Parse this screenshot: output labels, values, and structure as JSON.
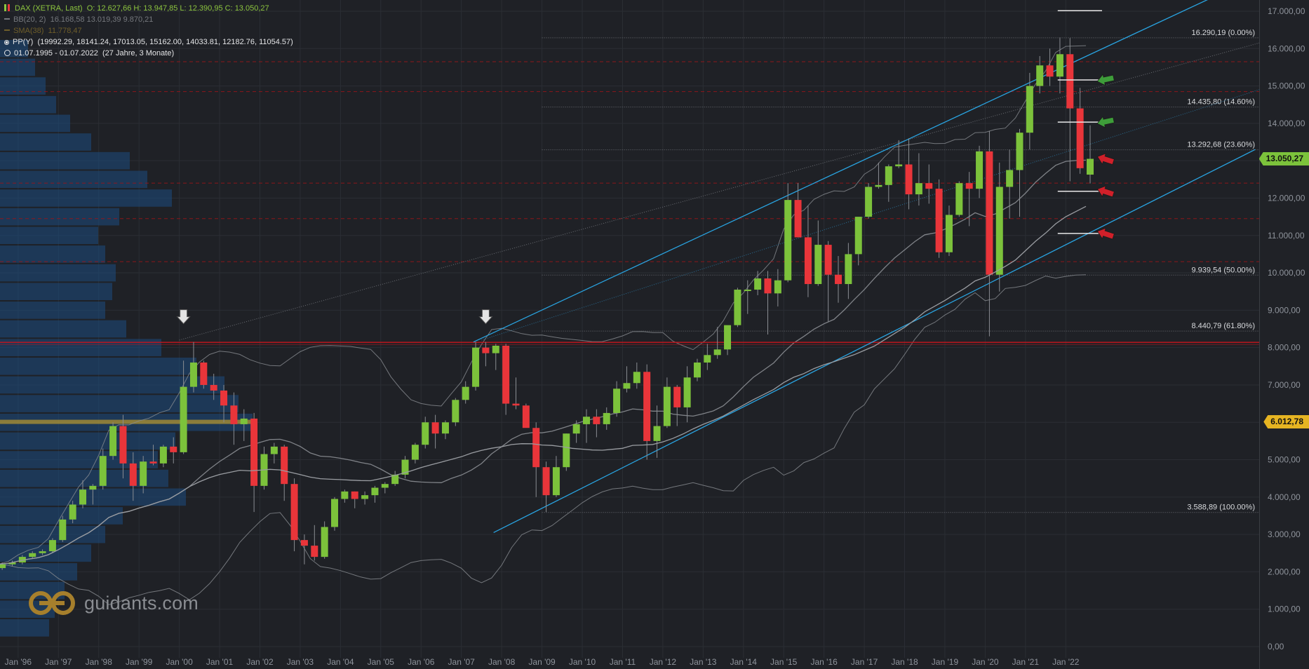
{
  "legend": {
    "title": "DAX (XETRA, Last)",
    "ohlc": "O: 12.627,66  H: 13.947,85  L: 12.390,95  C: 13.050,27",
    "bb_label": "BB(20, 2)",
    "bb_values": "16.168,58  13.019,39  9.870,21",
    "sma_label": "SMA(38)",
    "sma_value": "11.778,47",
    "pp_label": "PP(Y)",
    "pp_values": "(19992.29, 18141.24, 17013.05, 15162.00, 14033.81, 12182.76, 11054.57)",
    "range": "01.07.1995 - 01.07.2022",
    "range_note": "(27 Jahre, 3 Monate)"
  },
  "colors": {
    "bg": "#1f2126",
    "up": "#7cc23b",
    "down": "#e9353a",
    "channel": "#29a3e0",
    "bands": "#8a8d92",
    "sma": "#9a9da2",
    "legend_green": "#8dc63f",
    "badge_green": "#7cc23b",
    "badge_yellow": "#e6b422",
    "support_red": "#c8141c"
  },
  "logo": {
    "text": "guidants.com",
    "icon": "guidants-logo-icon"
  },
  "chart_data": {
    "type": "candlestick",
    "interval": "quarterly",
    "ylim": [
      -300,
      17300
    ],
    "yticks": [
      0,
      1000,
      2000,
      3000,
      4000,
      5000,
      6000,
      7000,
      8000,
      9000,
      10000,
      11000,
      12000,
      13000,
      14000,
      15000,
      16000,
      17000
    ],
    "ytick_labels": [
      "0,00",
      "1.000,00",
      "2.000,00",
      "3.000,00",
      "4.000,00",
      "5.000,00",
      "6.000,00",
      "7.000,00",
      "8.000,00",
      "9.000,00",
      "10.000,00",
      "11.000,00",
      "12.000,00",
      "13.000,00",
      "14.000,00",
      "15.000,00",
      "16.000,00",
      "17.000,00"
    ],
    "xlim": [
      1995.55,
      2026.8
    ],
    "xticks": [
      1996,
      1997,
      1998,
      1999,
      2000,
      2001,
      2002,
      2003,
      2004,
      2005,
      2006,
      2007,
      2008,
      2009,
      2010,
      2011,
      2012,
      2013,
      2014,
      2015,
      2016,
      2017,
      2018,
      2019,
      2020,
      2021,
      2022
    ],
    "xtick_labels": [
      "Jan '96",
      "Jan '97",
      "Jan '98",
      "Jan '99",
      "Jan '00",
      "Jan '01",
      "Jan '02",
      "Jan '03",
      "Jan '04",
      "Jan '05",
      "Jan '06",
      "Jan '07",
      "Jan '08",
      "Jan '09",
      "Jan '10",
      "Jan '11",
      "Jan '12",
      "Jan '13",
      "Jan '14",
      "Jan '15",
      "Jan '16",
      "Jan '17",
      "Jan '18",
      "Jan '19",
      "Jan '20",
      "Jan '21",
      "Jan '22"
    ],
    "candles": [
      {
        "t": 1995.5,
        "o": 2100,
        "h": 2250,
        "l": 2050,
        "c": 2200
      },
      {
        "t": 1995.75,
        "o": 2200,
        "h": 2300,
        "l": 2150,
        "c": 2250
      },
      {
        "t": 1996.0,
        "o": 2250,
        "h": 2450,
        "l": 2200,
        "c": 2400
      },
      {
        "t": 1996.25,
        "o": 2400,
        "h": 2550,
        "l": 2350,
        "c": 2500
      },
      {
        "t": 1996.5,
        "o": 2500,
        "h": 2600,
        "l": 2450,
        "c": 2550
      },
      {
        "t": 1996.75,
        "o": 2550,
        "h": 2900,
        "l": 2500,
        "c": 2850
      },
      {
        "t": 1997.0,
        "o": 2850,
        "h": 3500,
        "l": 2800,
        "c": 3400
      },
      {
        "t": 1997.25,
        "o": 3400,
        "h": 3900,
        "l": 3300,
        "c": 3800
      },
      {
        "t": 1997.5,
        "o": 3800,
        "h": 4450,
        "l": 3700,
        "c": 4200
      },
      {
        "t": 1997.75,
        "o": 4200,
        "h": 4350,
        "l": 3800,
        "c": 4300
      },
      {
        "t": 1998.0,
        "o": 4300,
        "h": 5300,
        "l": 4200,
        "c": 5100
      },
      {
        "t": 1998.25,
        "o": 5100,
        "h": 6000,
        "l": 5000,
        "c": 5900
      },
      {
        "t": 1998.5,
        "o": 5900,
        "h": 6200,
        "l": 4500,
        "c": 4900
      },
      {
        "t": 1998.75,
        "o": 4900,
        "h": 5200,
        "l": 3900,
        "c": 4300
      },
      {
        "t": 1999.0,
        "o": 4300,
        "h": 5100,
        "l": 4100,
        "c": 4950
      },
      {
        "t": 1999.25,
        "o": 4950,
        "h": 5400,
        "l": 4850,
        "c": 4900
      },
      {
        "t": 1999.5,
        "o": 4900,
        "h": 5400,
        "l": 4800,
        "c": 5350
      },
      {
        "t": 1999.75,
        "o": 5350,
        "h": 5600,
        "l": 4900,
        "c": 5200
      },
      {
        "t": 2000.0,
        "o": 5200,
        "h": 7650,
        "l": 5150,
        "c": 6950
      },
      {
        "t": 2000.25,
        "o": 6950,
        "h": 8150,
        "l": 6800,
        "c": 7600
      },
      {
        "t": 2000.5,
        "o": 7600,
        "h": 7650,
        "l": 6900,
        "c": 7000
      },
      {
        "t": 2000.75,
        "o": 7000,
        "h": 7300,
        "l": 6600,
        "c": 6850
      },
      {
        "t": 2001.0,
        "o": 6850,
        "h": 7000,
        "l": 6000,
        "c": 6450
      },
      {
        "t": 2001.25,
        "o": 6450,
        "h": 6800,
        "l": 5400,
        "c": 5950
      },
      {
        "t": 2001.5,
        "o": 5950,
        "h": 6350,
        "l": 5500,
        "c": 6100
      },
      {
        "t": 2001.75,
        "o": 6100,
        "h": 6250,
        "l": 3600,
        "c": 4300
      },
      {
        "t": 2002.0,
        "o": 4300,
        "h": 5350,
        "l": 4200,
        "c": 5150
      },
      {
        "t": 2002.25,
        "o": 5150,
        "h": 5450,
        "l": 4900,
        "c": 5350
      },
      {
        "t": 2002.5,
        "o": 5350,
        "h": 5400,
        "l": 3900,
        "c": 4350
      },
      {
        "t": 2002.75,
        "o": 4350,
        "h": 4500,
        "l": 2550,
        "c": 2850
      },
      {
        "t": 2003.0,
        "o": 2850,
        "h": 3000,
        "l": 2200,
        "c": 2700
      },
      {
        "t": 2003.25,
        "o": 2700,
        "h": 3250,
        "l": 2300,
        "c": 2400
      },
      {
        "t": 2003.5,
        "o": 2400,
        "h": 3350,
        "l": 2350,
        "c": 3200
      },
      {
        "t": 2003.75,
        "o": 3200,
        "h": 4000,
        "l": 3100,
        "c": 3950
      },
      {
        "t": 2004.0,
        "o": 3950,
        "h": 4200,
        "l": 3850,
        "c": 4150
      },
      {
        "t": 2004.25,
        "o": 4150,
        "h": 4150,
        "l": 3700,
        "c": 3950
      },
      {
        "t": 2004.5,
        "o": 3950,
        "h": 4150,
        "l": 3800,
        "c": 4050
      },
      {
        "t": 2004.75,
        "o": 4050,
        "h": 4300,
        "l": 3850,
        "c": 4250
      },
      {
        "t": 2005.0,
        "o": 4250,
        "h": 4400,
        "l": 4100,
        "c": 4350
      },
      {
        "t": 2005.25,
        "o": 4350,
        "h": 4700,
        "l": 4300,
        "c": 4600
      },
      {
        "t": 2005.5,
        "o": 4600,
        "h": 5100,
        "l": 4500,
        "c": 5000
      },
      {
        "t": 2005.75,
        "o": 5000,
        "h": 5450,
        "l": 4900,
        "c": 5400
      },
      {
        "t": 2006.0,
        "o": 5400,
        "h": 6150,
        "l": 5300,
        "c": 6000
      },
      {
        "t": 2006.25,
        "o": 6000,
        "h": 6200,
        "l": 5300,
        "c": 5700
      },
      {
        "t": 2006.5,
        "o": 5700,
        "h": 6050,
        "l": 5550,
        "c": 6000
      },
      {
        "t": 2006.75,
        "o": 6000,
        "h": 6650,
        "l": 5900,
        "c": 6600
      },
      {
        "t": 2007.0,
        "o": 6600,
        "h": 7100,
        "l": 6500,
        "c": 6950
      },
      {
        "t": 2007.25,
        "o": 6950,
        "h": 8150,
        "l": 6850,
        "c": 8000
      },
      {
        "t": 2007.5,
        "o": 8000,
        "h": 8150,
        "l": 7500,
        "c": 7850
      },
      {
        "t": 2007.75,
        "o": 7850,
        "h": 8100,
        "l": 7400,
        "c": 8050
      },
      {
        "t": 2008.0,
        "o": 8050,
        "h": 8100,
        "l": 6200,
        "c": 6500
      },
      {
        "t": 2008.25,
        "o": 6500,
        "h": 7200,
        "l": 6350,
        "c": 6450
      },
      {
        "t": 2008.5,
        "o": 6450,
        "h": 6500,
        "l": 5900,
        "c": 5850
      },
      {
        "t": 2008.75,
        "o": 5850,
        "h": 6000,
        "l": 4000,
        "c": 4800
      },
      {
        "t": 2009.0,
        "o": 4800,
        "h": 4950,
        "l": 3600,
        "c": 4050
      },
      {
        "t": 2009.25,
        "o": 4050,
        "h": 5100,
        "l": 4000,
        "c": 4800
      },
      {
        "t": 2009.5,
        "o": 4800,
        "h": 5700,
        "l": 4700,
        "c": 5700
      },
      {
        "t": 2009.75,
        "o": 5700,
        "h": 6050,
        "l": 5450,
        "c": 5950
      },
      {
        "t": 2010.0,
        "o": 5950,
        "h": 6350,
        "l": 5450,
        "c": 6150
      },
      {
        "t": 2010.25,
        "o": 6150,
        "h": 6350,
        "l": 5600,
        "c": 5950
      },
      {
        "t": 2010.5,
        "o": 5950,
        "h": 6400,
        "l": 5800,
        "c": 6250
      },
      {
        "t": 2010.75,
        "o": 6250,
        "h": 7100,
        "l": 6150,
        "c": 6900
      },
      {
        "t": 2011.0,
        "o": 6900,
        "h": 7500,
        "l": 6800,
        "c": 7050
      },
      {
        "t": 2011.25,
        "o": 7050,
        "h": 7600,
        "l": 6900,
        "c": 7350
      },
      {
        "t": 2011.5,
        "o": 7350,
        "h": 7550,
        "l": 5000,
        "c": 5500
      },
      {
        "t": 2011.75,
        "o": 5500,
        "h": 6450,
        "l": 5050,
        "c": 5900
      },
      {
        "t": 2012.0,
        "o": 5900,
        "h": 7200,
        "l": 5850,
        "c": 6950
      },
      {
        "t": 2012.25,
        "o": 6950,
        "h": 7000,
        "l": 5900,
        "c": 6400
      },
      {
        "t": 2012.5,
        "o": 6400,
        "h": 7500,
        "l": 6000,
        "c": 7200
      },
      {
        "t": 2012.75,
        "o": 7200,
        "h": 7700,
        "l": 7100,
        "c": 7600
      },
      {
        "t": 2013.0,
        "o": 7600,
        "h": 8100,
        "l": 7400,
        "c": 7800
      },
      {
        "t": 2013.25,
        "o": 7800,
        "h": 8550,
        "l": 7700,
        "c": 7950
      },
      {
        "t": 2013.5,
        "o": 7950,
        "h": 8500,
        "l": 7800,
        "c": 8600
      },
      {
        "t": 2013.75,
        "o": 8600,
        "h": 9600,
        "l": 8550,
        "c": 9550
      },
      {
        "t": 2014.0,
        "o": 9550,
        "h": 9800,
        "l": 8900,
        "c": 9550
      },
      {
        "t": 2014.25,
        "o": 9550,
        "h": 10050,
        "l": 9400,
        "c": 9850
      },
      {
        "t": 2014.5,
        "o": 9850,
        "h": 10050,
        "l": 8350,
        "c": 9450
      },
      {
        "t": 2014.75,
        "o": 9450,
        "h": 10100,
        "l": 9100,
        "c": 9800
      },
      {
        "t": 2015.0,
        "o": 9800,
        "h": 12400,
        "l": 9750,
        "c": 11950
      },
      {
        "t": 2015.25,
        "o": 11950,
        "h": 12400,
        "l": 10950,
        "c": 10950
      },
      {
        "t": 2015.5,
        "o": 10950,
        "h": 11800,
        "l": 9350,
        "c": 9700
      },
      {
        "t": 2015.75,
        "o": 9700,
        "h": 11400,
        "l": 9650,
        "c": 10750
      },
      {
        "t": 2016.0,
        "o": 10750,
        "h": 10850,
        "l": 8700,
        "c": 9950
      },
      {
        "t": 2016.25,
        "o": 9950,
        "h": 10450,
        "l": 9200,
        "c": 9700
      },
      {
        "t": 2016.5,
        "o": 9700,
        "h": 10800,
        "l": 9300,
        "c": 10500
      },
      {
        "t": 2016.75,
        "o": 10500,
        "h": 11450,
        "l": 10200,
        "c": 11500
      },
      {
        "t": 2017.0,
        "o": 11500,
        "h": 12400,
        "l": 11450,
        "c": 12300
      },
      {
        "t": 2017.25,
        "o": 12300,
        "h": 12950,
        "l": 12250,
        "c": 12350
      },
      {
        "t": 2017.5,
        "o": 12350,
        "h": 12900,
        "l": 11900,
        "c": 12850
      },
      {
        "t": 2017.75,
        "o": 12850,
        "h": 13550,
        "l": 12800,
        "c": 12900
      },
      {
        "t": 2018.0,
        "o": 12900,
        "h": 13600,
        "l": 11700,
        "c": 12100
      },
      {
        "t": 2018.25,
        "o": 12100,
        "h": 13200,
        "l": 11800,
        "c": 12400
      },
      {
        "t": 2018.5,
        "o": 12400,
        "h": 12900,
        "l": 11850,
        "c": 12250
      },
      {
        "t": 2018.75,
        "o": 12250,
        "h": 12500,
        "l": 10400,
        "c": 10550
      },
      {
        "t": 2019.0,
        "o": 10550,
        "h": 11800,
        "l": 10450,
        "c": 11550
      },
      {
        "t": 2019.25,
        "o": 11550,
        "h": 12450,
        "l": 11500,
        "c": 12400
      },
      {
        "t": 2019.5,
        "o": 12400,
        "h": 12700,
        "l": 11250,
        "c": 12250
      },
      {
        "t": 2019.75,
        "o": 12250,
        "h": 13400,
        "l": 12000,
        "c": 13250
      },
      {
        "t": 2020.0,
        "o": 13250,
        "h": 13800,
        "l": 8300,
        "c": 9950
      },
      {
        "t": 2020.25,
        "o": 9950,
        "h": 12950,
        "l": 9500,
        "c": 12300
      },
      {
        "t": 2020.5,
        "o": 12300,
        "h": 13300,
        "l": 11450,
        "c": 12750
      },
      {
        "t": 2020.75,
        "o": 12750,
        "h": 13850,
        "l": 11500,
        "c": 13750
      },
      {
        "t": 2021.0,
        "o": 13750,
        "h": 15350,
        "l": 13300,
        "c": 15000
      },
      {
        "t": 2021.25,
        "o": 15000,
        "h": 15800,
        "l": 14800,
        "c": 15550
      },
      {
        "t": 2021.5,
        "o": 15550,
        "h": 16000,
        "l": 15000,
        "c": 15250
      },
      {
        "t": 2021.75,
        "o": 15250,
        "h": 16300,
        "l": 14800,
        "c": 15850
      },
      {
        "t": 2022.0,
        "o": 15850,
        "h": 16280,
        "l": 12450,
        "c": 14400
      },
      {
        "t": 2022.25,
        "o": 14400,
        "h": 14950,
        "l": 12650,
        "c": 12800
      },
      {
        "t": 2022.5,
        "o": 12627.66,
        "h": 13947.85,
        "l": 12390.95,
        "c": 13050.27
      }
    ],
    "fib_levels": [
      {
        "value": 16290.19,
        "label": "16.290,19 (0.00%)"
      },
      {
        "value": 14435.8,
        "label": "14.435,80 (14.60%)"
      },
      {
        "value": 13292.68,
        "label": "13.292,68 (23.60%)"
      },
      {
        "value": 9939.54,
        "label": "9.939,54 (50.00%)"
      },
      {
        "value": 8440.79,
        "label": "8.440,79 (61.80%)"
      },
      {
        "value": 3588.89,
        "label": "3.588,89 (100.00%)"
      }
    ],
    "price_badges": [
      {
        "value": 13050.27,
        "label": "13.050,27",
        "kind": "green"
      },
      {
        "value": 6012.78,
        "label": "6.012,78",
        "kind": "yellow"
      }
    ],
    "pivot_levels": [
      17013.05,
      15162.0,
      14033.81,
      12182.76,
      11054.57
    ],
    "pivot_arrows": [
      {
        "value": 15162.0,
        "direction": "up"
      },
      {
        "value": 14033.81,
        "direction": "up"
      },
      {
        "value": 13050.27,
        "direction": "down"
      },
      {
        "value": 12182.76,
        "direction": "down"
      },
      {
        "value": 11054.57,
        "direction": "down"
      }
    ],
    "red_dashed_levels": [
      15650,
      14850,
      12400,
      11450,
      10300
    ],
    "support_line": 8140,
    "channel": {
      "upper": [
        [
          2007.3,
          8150
        ],
        [
          2025.7,
          17400
        ]
      ],
      "lower": [
        [
          2007.8,
          3050
        ],
        [
          2026.7,
          13300
        ]
      ]
    },
    "top_markers": [
      2000.0,
      2007.5
    ],
    "volume_profile": [
      {
        "v": 500,
        "w": 70
      },
      {
        "v": 1000,
        "w": 78
      },
      {
        "v": 1500,
        "w": 92
      },
      {
        "v": 2000,
        "w": 110
      },
      {
        "v": 2500,
        "w": 130
      },
      {
        "v": 3000,
        "w": 150
      },
      {
        "v": 3500,
        "w": 175
      },
      {
        "v": 4000,
        "w": 265
      },
      {
        "v": 4500,
        "w": 240
      },
      {
        "v": 5000,
        "w": 225
      },
      {
        "v": 5500,
        "w": 250
      },
      {
        "v": 6000,
        "w": 360
      },
      {
        "v": 6500,
        "w": 340
      },
      {
        "v": 7000,
        "w": 320
      },
      {
        "v": 7500,
        "w": 280
      },
      {
        "v": 8000,
        "w": 230
      },
      {
        "v": 8500,
        "w": 180
      },
      {
        "v": 9000,
        "w": 150
      },
      {
        "v": 9500,
        "w": 160
      },
      {
        "v": 10000,
        "w": 165
      },
      {
        "v": 10500,
        "w": 150
      },
      {
        "v": 11000,
        "w": 140
      },
      {
        "v": 11500,
        "w": 170
      },
      {
        "v": 12000,
        "w": 245
      },
      {
        "v": 12500,
        "w": 210
      },
      {
        "v": 13000,
        "w": 185
      },
      {
        "v": 13500,
        "w": 130
      },
      {
        "v": 14000,
        "w": 100
      },
      {
        "v": 14500,
        "w": 80
      },
      {
        "v": 15000,
        "w": 65
      },
      {
        "v": 15500,
        "w": 50
      },
      {
        "v": 16000,
        "w": 40
      }
    ]
  }
}
